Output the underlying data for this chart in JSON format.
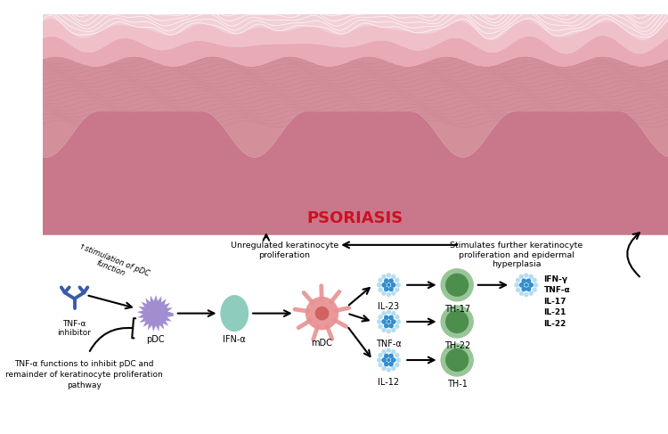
{
  "bg_color": "#ffffff",
  "skin_bottom_color": "#f2d0d8",
  "dermis_color": "#c8788a",
  "epidermis_color": "#d4909a",
  "sc_color": "#e8aab5",
  "corneum_color": "#f0c0c8",
  "psoriasis_text": "PSORIASIS",
  "psoriasis_color": "#cc1122",
  "antibody_color": "#3a5baa",
  "tnf_inhibitor_label": "TNF-α\ninhibitor",
  "pdc_color": "#9985cc",
  "pdc_label": "pDC",
  "ifna_color": "#85c8b8",
  "ifna_label": "IFN-α",
  "mdc_body_color": "#e89090",
  "mdc_nucleus_color": "#d06060",
  "mdc_label": "mDC",
  "il23_label": "IL-23",
  "tnfa_cytokine_label": "TNF-α",
  "il12_label": "IL-12",
  "th17_label": "TH-17",
  "th22_label": "TH-22",
  "th1_label": "TH-1",
  "cyt_outer_color": "#a8d8ee",
  "cyt_inner_color": "#2888cc",
  "th_outer_color": "#8abe8a",
  "th_inner_color": "#4a8c4a",
  "final_cytokines_label": "IFN-γ\nTNF-α\nIL-17\nIL-21\nIL-22",
  "stim_pdc_text": "↑stimulation of pDC\nfunction",
  "inhibit_text": "TNF-α functions to inhibit pDC and\nremainder of keratinocyte proliferation\npathway",
  "unregulated_text": "Unregulated keratinocyte\nproliferation",
  "stimulates_text": "Stimulates further keratinocyte\nproliferation and epidermal\nhyperplasia"
}
